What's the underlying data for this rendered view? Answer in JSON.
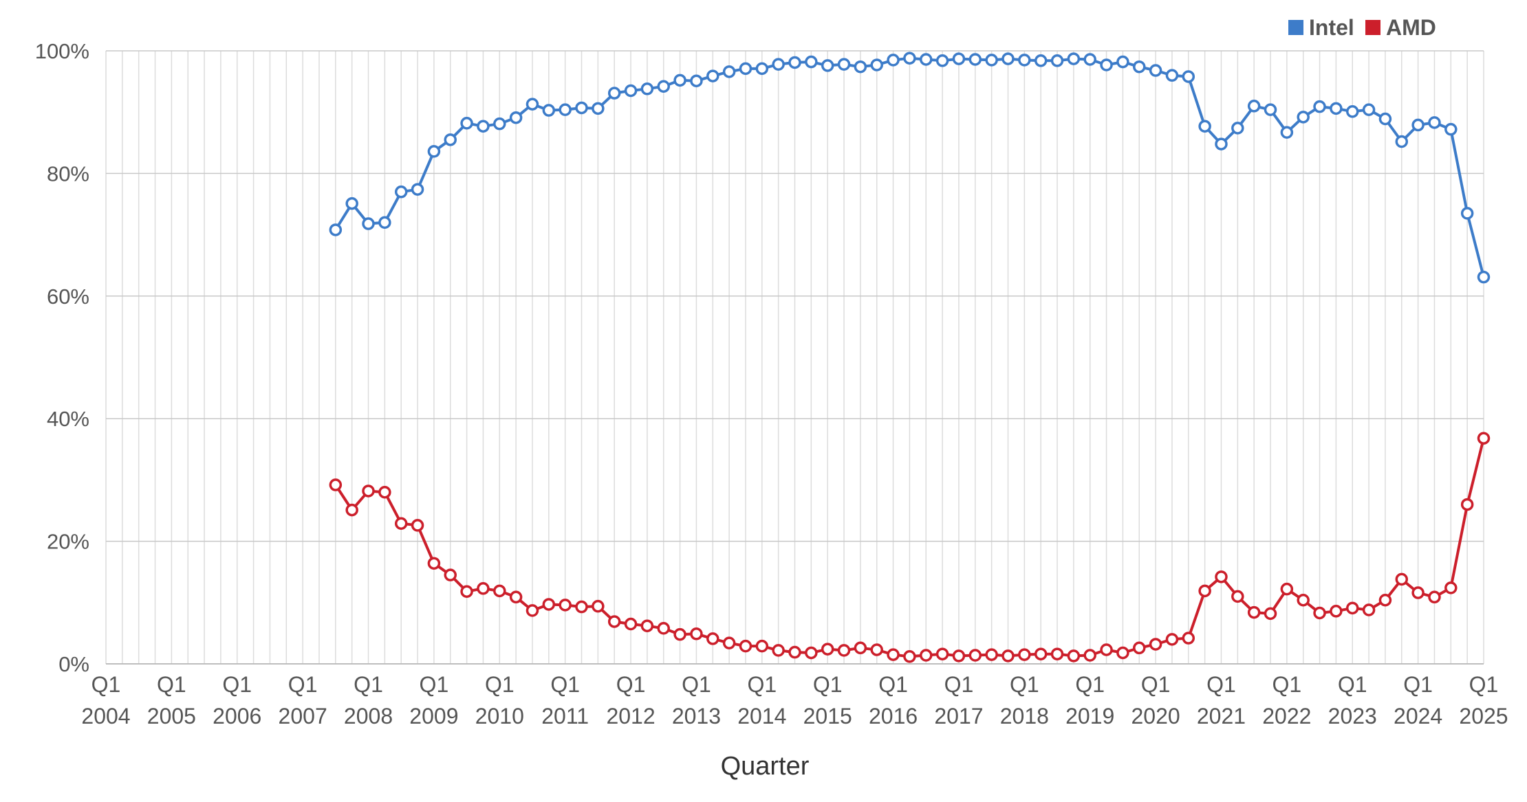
{
  "chart_data": {
    "type": "line",
    "xlabel": "Quarter",
    "ylabel": "",
    "ylim": [
      0,
      100
    ],
    "y_ticks": [
      "0%",
      "20%",
      "40%",
      "60%",
      "80%",
      "100%"
    ],
    "x_start": "Q1 2004",
    "x_end": "Q1 2025",
    "x_tick_labels": [
      {
        "quarter": "Q1",
        "year": "2004"
      },
      {
        "quarter": "Q1",
        "year": "2005"
      },
      {
        "quarter": "Q1",
        "year": "2006"
      },
      {
        "quarter": "Q1",
        "year": "2007"
      },
      {
        "quarter": "Q1",
        "year": "2008"
      },
      {
        "quarter": "Q1",
        "year": "2009"
      },
      {
        "quarter": "Q1",
        "year": "2010"
      },
      {
        "quarter": "Q1",
        "year": "2011"
      },
      {
        "quarter": "Q1",
        "year": "2012"
      },
      {
        "quarter": "Q1",
        "year": "2013"
      },
      {
        "quarter": "Q1",
        "year": "2014"
      },
      {
        "quarter": "Q1",
        "year": "2015"
      },
      {
        "quarter": "Q1",
        "year": "2016"
      },
      {
        "quarter": "Q1",
        "year": "2017"
      },
      {
        "quarter": "Q1",
        "year": "2018"
      },
      {
        "quarter": "Q1",
        "year": "2019"
      },
      {
        "quarter": "Q1",
        "year": "2020"
      },
      {
        "quarter": "Q1",
        "year": "2021"
      },
      {
        "quarter": "Q1",
        "year": "2022"
      },
      {
        "quarter": "Q1",
        "year": "2023"
      },
      {
        "quarter": "Q1",
        "year": "2024"
      },
      {
        "quarter": "Q1",
        "year": "2025"
      }
    ],
    "grid": true,
    "legend_position": "top-right",
    "data_start": "Q3 2007",
    "series": [
      {
        "name": "Intel",
        "color": "#3d7cc9",
        "values": [
          70.8,
          75.1,
          71.8,
          72.0,
          77.0,
          77.4,
          83.6,
          85.5,
          88.2,
          87.7,
          88.1,
          89.1,
          91.3,
          90.3,
          90.4,
          90.7,
          90.6,
          93.1,
          93.5,
          93.8,
          94.2,
          95.2,
          95.1,
          95.9,
          96.6,
          97.1,
          97.1,
          97.8,
          98.1,
          98.2,
          97.6,
          97.8,
          97.4,
          97.7,
          98.5,
          98.8,
          98.6,
          98.4,
          98.7,
          98.6,
          98.5,
          98.7,
          98.5,
          98.4,
          98.4,
          98.7,
          98.6,
          97.7,
          98.2,
          97.4,
          96.8,
          96.0,
          95.8,
          87.7,
          84.8,
          87.4,
          91.0,
          90.4,
          86.7,
          89.2,
          90.9,
          90.6,
          90.1,
          90.4,
          88.9,
          85.2,
          87.9,
          88.3,
          87.2,
          73.5,
          63.1
        ]
      },
      {
        "name": "AMD",
        "color": "#cc1f2b",
        "values": [
          29.2,
          25.1,
          28.2,
          28.0,
          22.9,
          22.6,
          16.4,
          14.5,
          11.8,
          12.3,
          11.9,
          10.9,
          8.7,
          9.7,
          9.6,
          9.3,
          9.4,
          6.9,
          6.5,
          6.2,
          5.8,
          4.8,
          4.9,
          4.1,
          3.4,
          2.9,
          2.9,
          2.2,
          1.9,
          1.8,
          2.4,
          2.2,
          2.6,
          2.3,
          1.5,
          1.2,
          1.4,
          1.6,
          1.3,
          1.4,
          1.5,
          1.3,
          1.5,
          1.6,
          1.6,
          1.3,
          1.4,
          2.3,
          1.8,
          2.6,
          3.2,
          4.0,
          4.2,
          11.9,
          14.2,
          11.0,
          8.4,
          8.2,
          12.2,
          10.4,
          8.3,
          8.6,
          9.1,
          8.8,
          10.4,
          13.8,
          11.6,
          10.9,
          12.4,
          26.0,
          36.8
        ]
      }
    ]
  }
}
